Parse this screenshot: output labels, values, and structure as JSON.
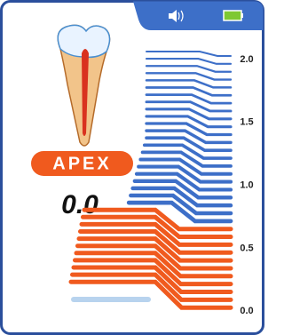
{
  "badge": "APEX",
  "reading": "0.0",
  "scale": [
    "2.0",
    "1.5",
    "1.0",
    "0.5",
    "0.0"
  ]
}
